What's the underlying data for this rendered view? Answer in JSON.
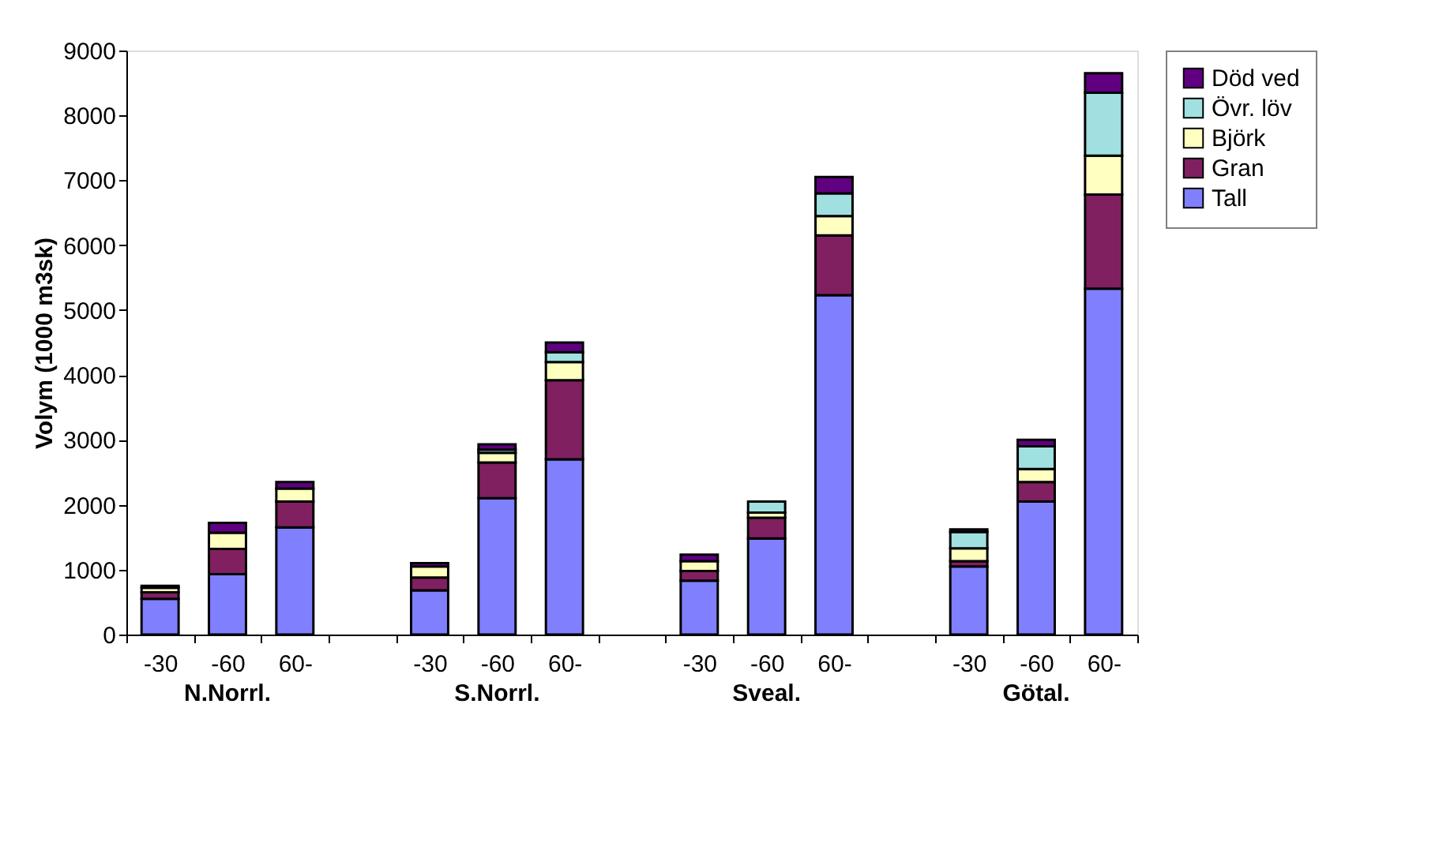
{
  "chart_data": {
    "type": "bar",
    "stacked": true,
    "ylabel": "Volym (1000 m3sk)",
    "categories": [
      "-30",
      "-60",
      "60-",
      null,
      "-30",
      "-60",
      "60-",
      null,
      "-30",
      "-60",
      "60-",
      null,
      "-30",
      "-60",
      "60-"
    ],
    "series": [
      {
        "name": "Tall",
        "color": "#8080ff",
        "values": [
          550,
          930,
          1650,
          null,
          680,
          2100,
          2700,
          null,
          830,
          1480,
          5230,
          null,
          1050,
          2050,
          5330
        ]
      },
      {
        "name": "Gran",
        "color": "#802060",
        "values": [
          100,
          390,
          400,
          null,
          200,
          550,
          1220,
          null,
          150,
          320,
          920,
          null,
          80,
          300,
          1450
        ]
      },
      {
        "name": "Björk",
        "color": "#ffffc0",
        "values": [
          70,
          250,
          200,
          null,
          170,
          150,
          280,
          null,
          150,
          80,
          300,
          null,
          200,
          200,
          600
        ]
      },
      {
        "name": "Övr. löv",
        "color": "#a0e0e0",
        "values": [
          null,
          null,
          null,
          null,
          null,
          50,
          150,
          null,
          null,
          170,
          350,
          null,
          250,
          350,
          970
        ]
      },
      {
        "name": "Död ved",
        "color": "#600080",
        "values": [
          30,
          150,
          100,
          null,
          50,
          80,
          150,
          null,
          100,
          null,
          250,
          null,
          40,
          100,
          300
        ]
      }
    ],
    "ylim": [
      0,
      9000
    ],
    "yticks": [
      0,
      1000,
      2000,
      3000,
      4000,
      5000,
      6000,
      7000,
      8000,
      9000
    ],
    "grid": false,
    "legend": "right",
    "annotations": [
      "N.Norrl.",
      "S.Norrl.",
      "Sveal.",
      "Götal."
    ]
  }
}
